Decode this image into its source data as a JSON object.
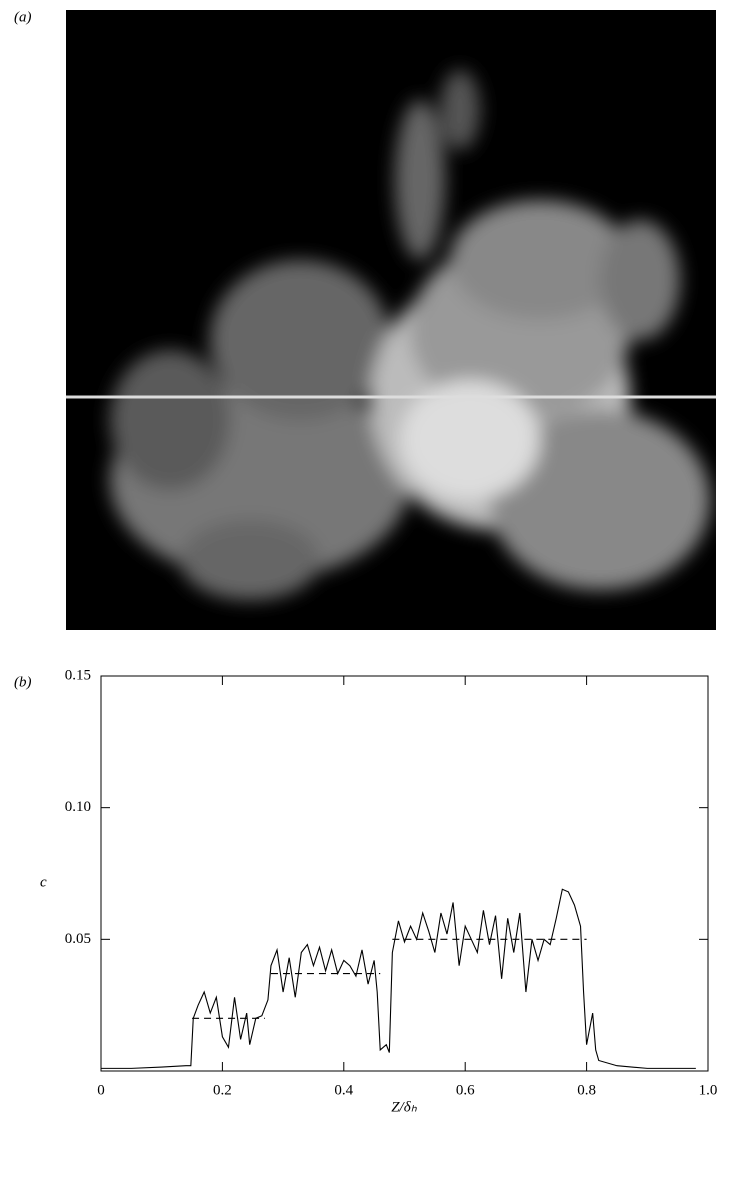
{
  "panel_a": {
    "label": "(a)"
  },
  "chart_data": {
    "type": "line",
    "panel_label": "(b)",
    "xlabel": "Z/δₕ",
    "ylabel": "c",
    "xlim": [
      0,
      1
    ],
    "ylim": [
      0,
      0.15
    ],
    "xticks": [
      0,
      0.2,
      0.4,
      0.6,
      0.8,
      {
        "value": 1,
        "label": "1.0"
      }
    ],
    "yticks": [
      {
        "value": 0.05,
        "label": "0.05"
      },
      {
        "value": 0.1,
        "label": "0.10"
      },
      0.15
    ],
    "series": [
      {
        "color": "#000",
        "dash": false,
        "x": [
          0,
          0.05,
          0.1,
          0.14,
          0.148,
          0.152,
          0.16,
          0.17,
          0.18,
          0.19,
          0.2,
          0.21,
          0.22,
          0.23,
          0.24,
          0.245,
          0.255,
          0.265,
          0.275,
          0.28,
          0.29,
          0.3,
          0.31,
          0.32,
          0.33,
          0.34,
          0.35,
          0.36,
          0.37,
          0.38,
          0.39,
          0.4,
          0.41,
          0.42,
          0.43,
          0.44,
          0.45,
          0.455,
          0.46,
          0.47,
          0.475,
          0.48,
          0.49,
          0.5,
          0.51,
          0.52,
          0.53,
          0.54,
          0.55,
          0.56,
          0.57,
          0.58,
          0.59,
          0.6,
          0.61,
          0.62,
          0.63,
          0.64,
          0.65,
          0.66,
          0.67,
          0.68,
          0.69,
          0.7,
          0.71,
          0.72,
          0.73,
          0.74,
          0.75,
          0.76,
          0.77,
          0.78,
          0.79,
          0.795,
          0.8,
          0.81,
          0.815,
          0.82,
          0.85,
          0.9,
          0.95,
          0.98
        ],
        "values": [
          0.001,
          0.001,
          0.0015,
          0.002,
          0.002,
          0.02,
          0.025,
          0.03,
          0.022,
          0.028,
          0.013,
          0.009,
          0.028,
          0.012,
          0.022,
          0.01,
          0.02,
          0.021,
          0.027,
          0.04,
          0.046,
          0.03,
          0.043,
          0.028,
          0.045,
          0.048,
          0.04,
          0.047,
          0.038,
          0.046,
          0.037,
          0.042,
          0.04,
          0.036,
          0.046,
          0.033,
          0.042,
          0.03,
          0.008,
          0.01,
          0.007,
          0.045,
          0.057,
          0.049,
          0.055,
          0.05,
          0.06,
          0.053,
          0.045,
          0.06,
          0.052,
          0.064,
          0.04,
          0.055,
          0.05,
          0.045,
          0.061,
          0.048,
          0.059,
          0.035,
          0.058,
          0.045,
          0.06,
          0.03,
          0.05,
          0.042,
          0.05,
          0.048,
          0.058,
          0.069,
          0.068,
          0.063,
          0.055,
          0.03,
          0.01,
          0.022,
          0.008,
          0.004,
          0.002,
          0.001,
          0.001,
          0.001
        ]
      },
      {
        "color": "#000",
        "dash": true,
        "x": [
          0.15,
          0.27,
          0.27,
          0.28,
          0.46,
          0.46,
          0.48,
          0.8
        ],
        "values": [
          0.02,
          0.02,
          null,
          0.037,
          0.037,
          null,
          0.05,
          0.05
        ]
      }
    ]
  }
}
